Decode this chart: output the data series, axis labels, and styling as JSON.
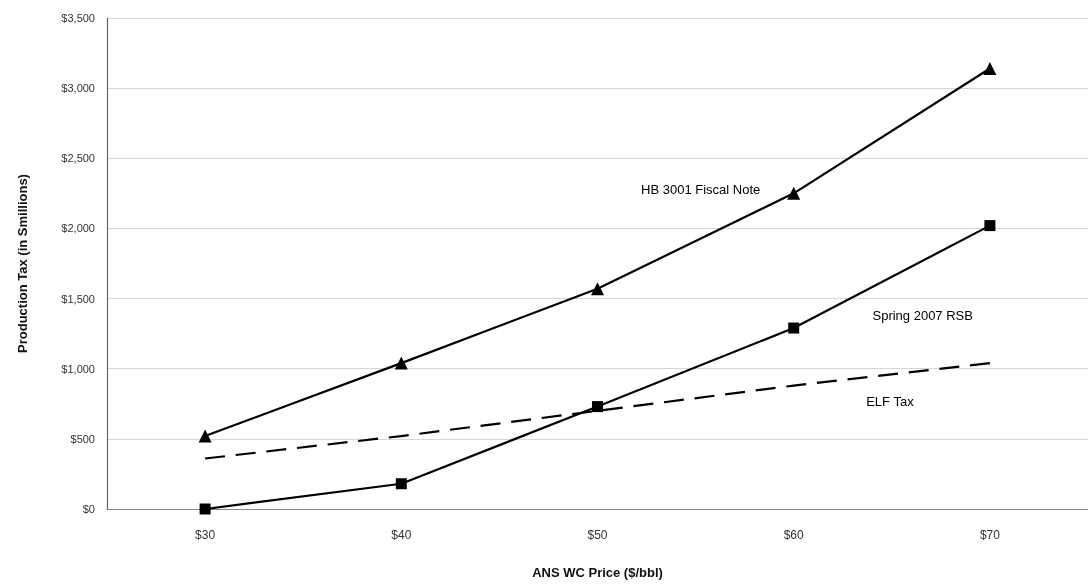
{
  "chart_data": {
    "type": "line",
    "xlabel": "ANS WC Price ($/bbl)",
    "ylabel": "Production Tax (in Smillions)",
    "categories": [
      "$30",
      "$40",
      "$50",
      "$60",
      "$70"
    ],
    "series": [
      {
        "name": "HB 3001 Fiscal Note",
        "color": "#000000",
        "marker": "triangle",
        "values": [
          520,
          1040,
          1570,
          2250,
          3140
        ]
      },
      {
        "name": "Spring 2007 RSB",
        "color": "#000000",
        "marker": "square",
        "values": [
          0,
          180,
          730,
          1290,
          2020
        ]
      },
      {
        "name": "ELF Tax",
        "color": "#000000",
        "marker": "none",
        "line_style": "dashed",
        "values": [
          360,
          520,
          700,
          880,
          1040
        ]
      }
    ],
    "ylim": [
      0,
      3500
    ],
    "yticks": [
      {
        "value": 0,
        "label": "$0"
      },
      {
        "value": 500,
        "label": "$500"
      },
      {
        "value": 1000,
        "label": "$1,000"
      },
      {
        "value": 1500,
        "label": "$1,500"
      },
      {
        "value": 2000,
        "label": "$2,000"
      },
      {
        "value": 2500,
        "label": "$2,500"
      },
      {
        "value": 3000,
        "label": "$3,000"
      },
      {
        "value": 3500,
        "label": "$3,500"
      }
    ],
    "grid": "y"
  }
}
